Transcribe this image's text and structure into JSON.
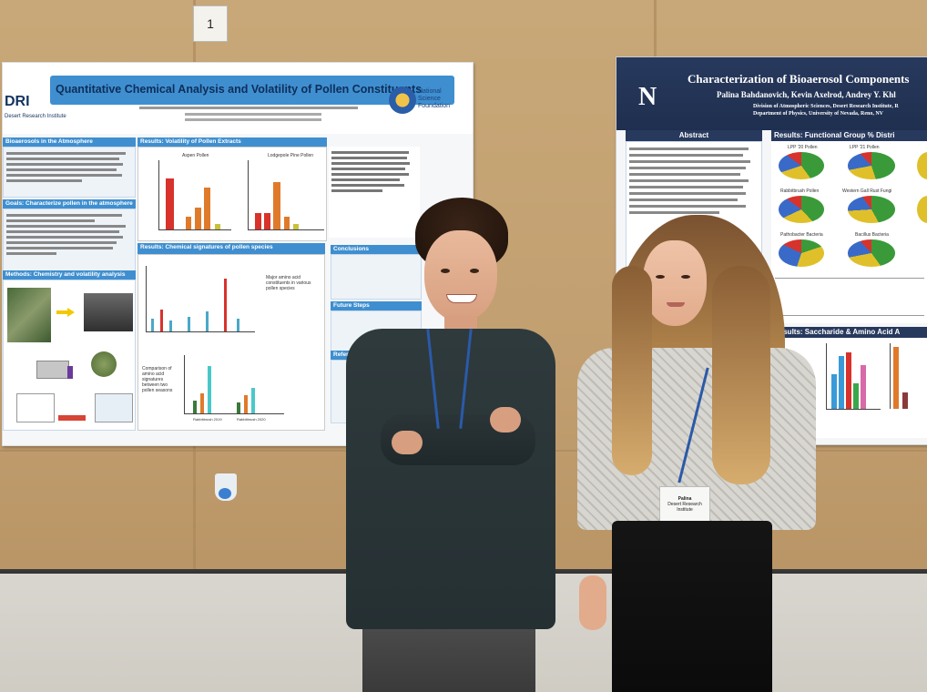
{
  "position_card": "1",
  "poster_left": {
    "logo": "DRI",
    "logo_sub": "Desert Research Institute",
    "title": "Quantitative Chemical Analysis and Volatility of Pollen Constituents",
    "nsf": "National Science Foundation",
    "sections": {
      "bioaerosols": "Bioaerosols in the Atmosphere",
      "goals": "Goals: Characterize pollen in the atmosphere",
      "methods": "Methods: Chemistry and volatility analysis",
      "volatility": "Results: Volatility of Pollen Extracts",
      "chemical": "Results: Chemical signatures of pollen species",
      "conclusions": "Conclusions",
      "future": "Future Steps",
      "references": "References"
    },
    "chart_labels": {
      "aspen": "Aspen Pollen",
      "lodgepole": "Lodgepole Pine Pollen",
      "amino_note": "Major amino acid constituents in various pollen species",
      "comparison_note": "Comparison of amino acid signatures between two pollen seasons",
      "x_2019": "Rabbitbrush 2019",
      "x_2020": "Rabbitbrush 2020"
    }
  },
  "poster_right": {
    "logo": "N",
    "title": "Characterization of Bioaerosol Components",
    "authors": "Palina Bahdanovich, Kevin Axelrod, Andrey Y. Khl",
    "affil_1": "Division of Atmospheric Sciences, Desert Research Institute, R",
    "affil_2": "Department of Physics, University of Nevada, Reno, NV",
    "abstract": "Abstract",
    "functional": "Results: Functional Group % Distri",
    "saccharide": "Results: Saccharide & Amino Acid A",
    "pie_labels": [
      "LPP '20 Pollen",
      "LPP '21 Pollen",
      "Rabbitbrush Pollen",
      "Western Gall Rust Fungi",
      "Pathobacter Bacteria",
      "Bacillus Bacteria"
    ]
  },
  "badge": {
    "name": "Palina",
    "org": "Desert Research Institute"
  },
  "colors": {
    "poster_blue": "#3f8fd0",
    "header_navy": "#1f2f4f"
  }
}
